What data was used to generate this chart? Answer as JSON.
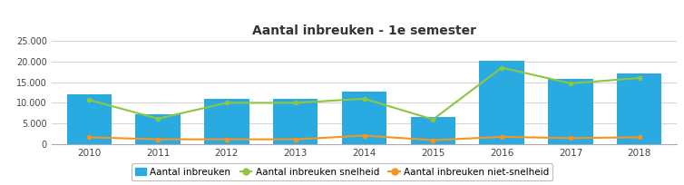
{
  "title": "Aantal inbreuken - 1e semester",
  "years": [
    2010,
    2011,
    2012,
    2013,
    2014,
    2015,
    2016,
    2017,
    2018
  ],
  "bar_values": [
    12000,
    7200,
    11000,
    11000,
    12700,
    6700,
    20200,
    15700,
    17200
  ],
  "line_snelheid": [
    10700,
    6200,
    10000,
    10000,
    11000,
    6000,
    18500,
    14700,
    16000
  ],
  "line_niet_snelheid": [
    1700,
    1200,
    1200,
    1200,
    2100,
    1000,
    1800,
    1500,
    1700
  ],
  "bar_color": "#29ABE2",
  "line_snelheid_color": "#8DC63F",
  "line_niet_snelheid_color": "#F7941D",
  "ylim": [
    0,
    25000
  ],
  "yticks": [
    0,
    5000,
    10000,
    15000,
    20000,
    25000
  ],
  "ytick_labels": [
    "0",
    "5.000",
    "10.000",
    "15.000",
    "20.000",
    "25.000"
  ],
  "legend_labels": [
    "Aantal inbreuken",
    "Aantal inbreuken snelheid",
    "Aantal inbreuken niet-snelheid"
  ],
  "background_color": "#ffffff",
  "title_fontsize": 10
}
